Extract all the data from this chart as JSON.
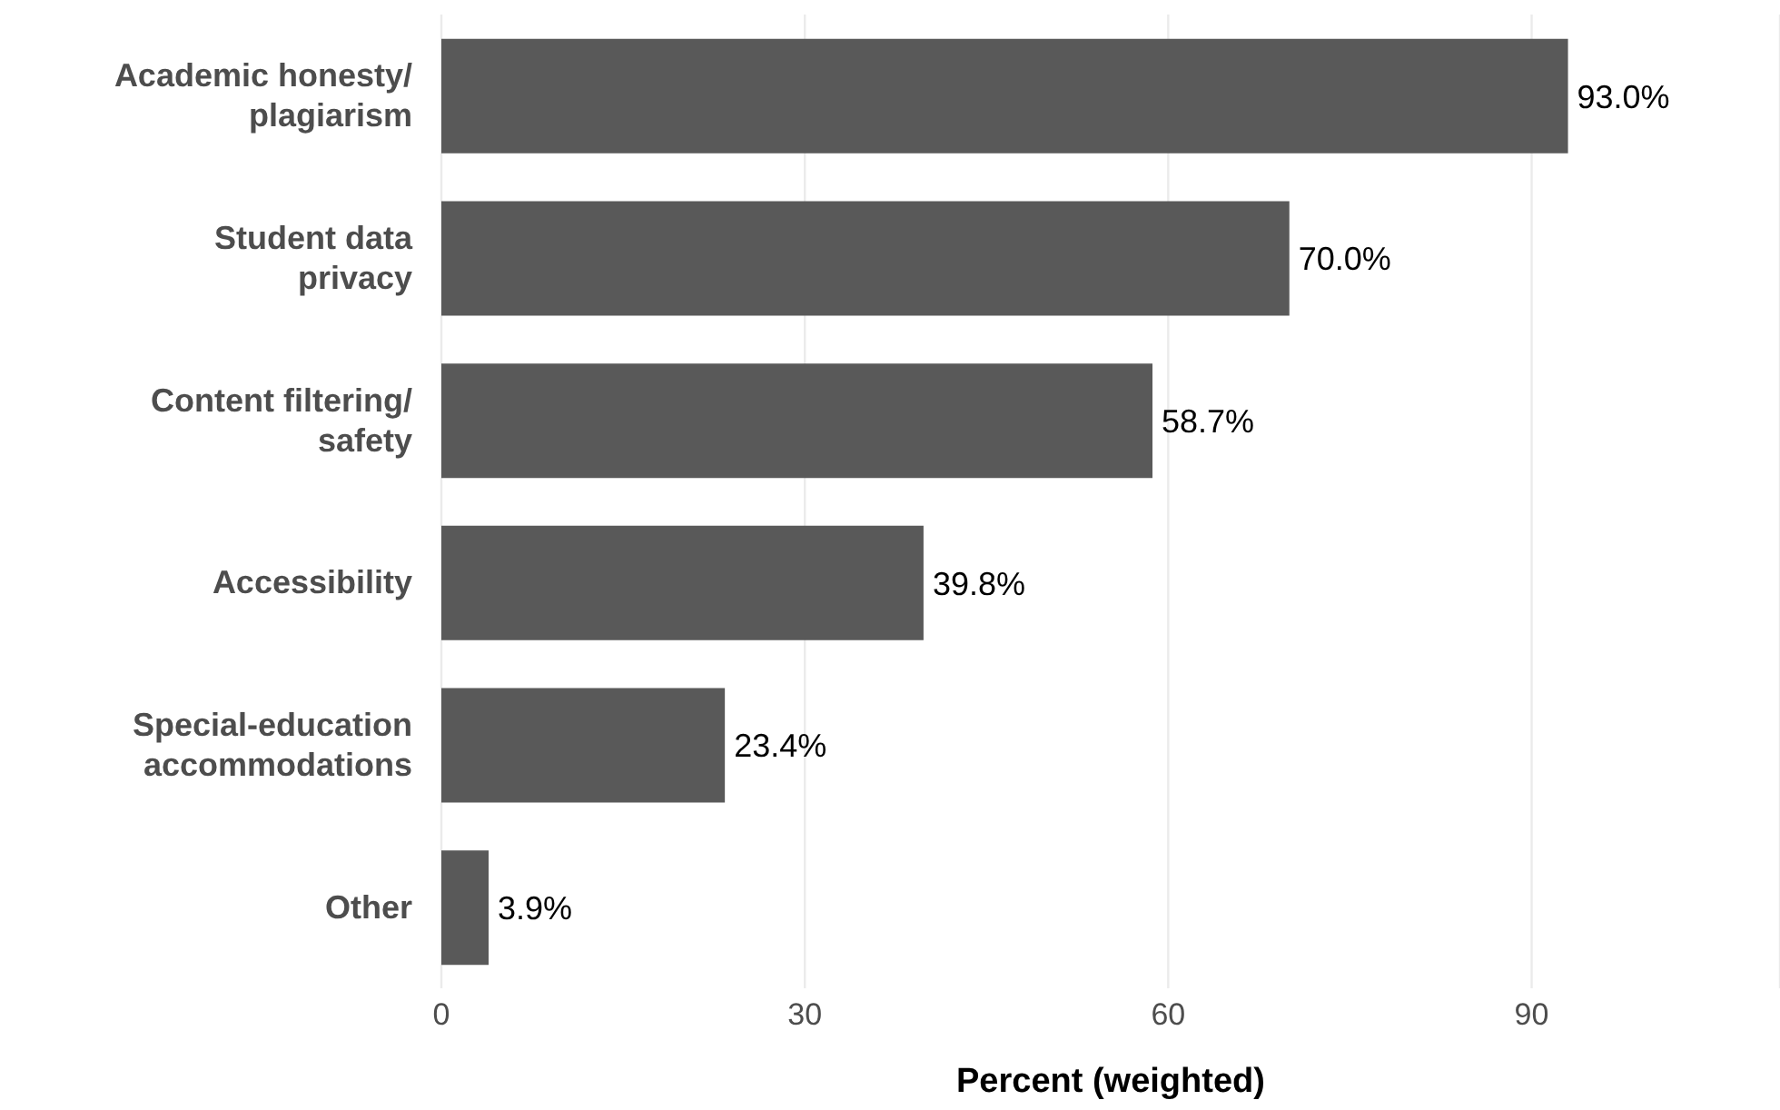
{
  "chart_data": {
    "type": "bar",
    "orientation": "horizontal",
    "categories": [
      "Academic honesty/ plagiarism",
      "Student data privacy",
      "Content filtering/ safety",
      "Accessibility",
      "Special-education accommodations",
      "Other"
    ],
    "values": [
      93.0,
      70.0,
      58.7,
      39.8,
      23.4,
      3.9
    ],
    "value_labels": [
      "93.0%",
      "70.0%",
      "58.7%",
      "39.8%",
      "23.4%",
      "3.9%"
    ],
    "color": "#595959",
    "xlabel": "Percent (weighted)",
    "xlim": [
      0,
      110.5
    ],
    "xticks": [
      0,
      30,
      60,
      90
    ],
    "grid": "x"
  }
}
